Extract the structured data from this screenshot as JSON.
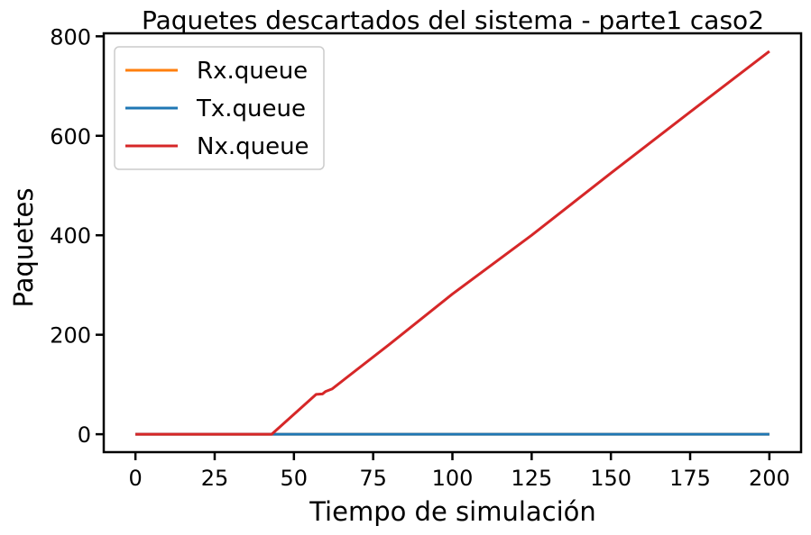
{
  "chart_data": {
    "type": "line",
    "title": "Paquetes descartados del sistema - parte1 caso2",
    "xlabel": "Tiempo de simulación",
    "ylabel": "Paquetes",
    "xlim": [
      -10,
      210
    ],
    "ylim": [
      -36,
      806
    ],
    "xticks": [
      0,
      25,
      50,
      75,
      100,
      125,
      150,
      175,
      200
    ],
    "yticks": [
      0,
      200,
      400,
      600,
      800
    ],
    "grid": false,
    "legend": "top-left",
    "series": [
      {
        "name": "Rx.queue",
        "color": "#ff7f0e",
        "x": [
          0,
          43,
          200
        ],
        "y": [
          0,
          0,
          0
        ]
      },
      {
        "name": "Tx.queue",
        "color": "#1f77b4",
        "x": [
          0,
          43,
          200
        ],
        "y": [
          0,
          0,
          0
        ]
      },
      {
        "name": "Nx.queue",
        "color": "#d62728",
        "x": [
          0,
          43,
          57,
          59,
          60,
          62,
          80,
          100,
          125,
          150,
          175,
          200
        ],
        "y": [
          0,
          0,
          80,
          81,
          86,
          91,
          180,
          282,
          400,
          525,
          648,
          770
        ]
      }
    ]
  }
}
